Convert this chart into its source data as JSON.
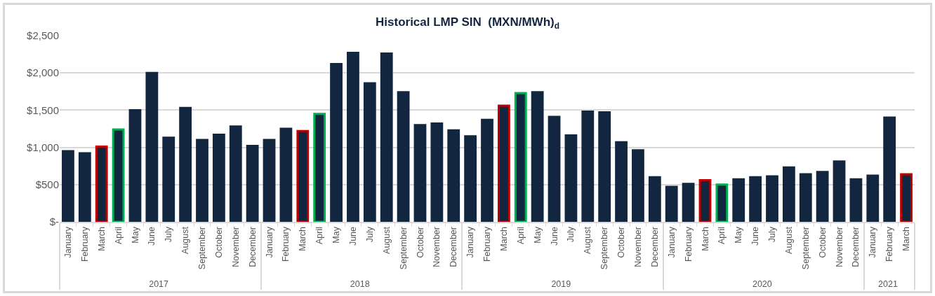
{
  "chart_data": {
    "type": "bar",
    "title": "Historical LMP SIN  (MXN/MWh)$_{d}$",
    "categories": [
      "January",
      "February",
      "March",
      "April",
      "May",
      "June",
      "July",
      "August",
      "September",
      "October",
      "November",
      "December",
      "January",
      "February",
      "March",
      "April",
      "May",
      "June",
      "July",
      "August",
      "September",
      "October",
      "November",
      "December",
      "January",
      "February",
      "March",
      "April",
      "May",
      "June",
      "July",
      "August",
      "September",
      "October",
      "November",
      "December",
      "January",
      "February",
      "March",
      "April",
      "May",
      "June",
      "July",
      "August",
      "September",
      "October",
      "November",
      "December",
      "January",
      "February",
      "March"
    ],
    "annotations": [
      "2017",
      "2018",
      "2019",
      "2020",
      "2021"
    ],
    "values": [
      950,
      920,
      1010,
      1240,
      1500,
      2000,
      1130,
      1530,
      1100,
      1170,
      1280,
      1020,
      1100,
      1250,
      1220,
      1450,
      2120,
      2270,
      1860,
      2260,
      1740,
      1300,
      1320,
      1230,
      1150,
      1370,
      1560,
      1730,
      1740,
      1410,
      1160,
      1480,
      1470,
      1070,
      960,
      600,
      470,
      510,
      560,
      500,
      570,
      600,
      610,
      730,
      640,
      670,
      810,
      570,
      620,
      1400,
      640
    ],
    "color": "#13263f",
    "colors": [
      "#13263f",
      "#13263f",
      "#c00000",
      "#00b050",
      "#13263f",
      "#13263f",
      "#13263f",
      "#13263f",
      "#13263f",
      "#13263f",
      "#13263f",
      "#13263f",
      "#13263f",
      "#13263f",
      "#c00000",
      "#00b050",
      "#13263f",
      "#13263f",
      "#13263f",
      "#13263f",
      "#13263f",
      "#13263f",
      "#13263f",
      "#13263f",
      "#13263f",
      "#13263f",
      "#c00000",
      "#00b050",
      "#13263f",
      "#13263f",
      "#13263f",
      "#13263f",
      "#13263f",
      "#13263f",
      "#13263f",
      "#13263f",
      "#13263f",
      "#13263f",
      "#c00000",
      "#00b050",
      "#13263f",
      "#13263f",
      "#13263f",
      "#13263f",
      "#13263f",
      "#13263f",
      "#13263f",
      "#13263f",
      "#13263f",
      "#13263f",
      "#c00000"
    ],
    "ylim": [
      0,
      2500
    ],
    "yticks": [
      {
        "value": 0,
        "label": "$-"
      },
      {
        "value": 500,
        "label": "$500"
      },
      {
        "value": 1000,
        "label": "$1,000"
      },
      {
        "value": 1500,
        "label": "$1,500"
      },
      {
        "value": 2000,
        "label": "$2,000"
      },
      {
        "value": 2500,
        "label": "$2,500"
      }
    ],
    "grid": "y",
    "legend": false
  }
}
